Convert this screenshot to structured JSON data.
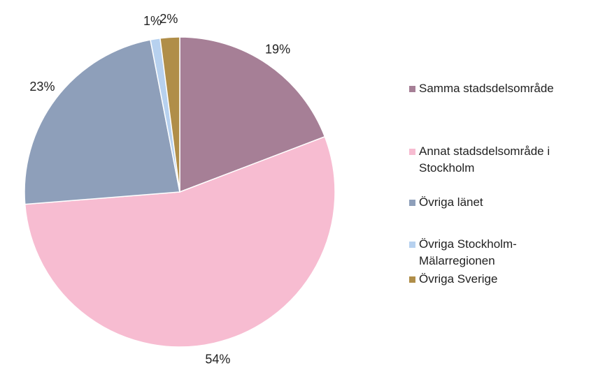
{
  "chart_data": {
    "type": "pie",
    "categories": [
      "Samma stadsdelsområde",
      "Annat stadsdelsområde i Stockholm",
      "Övriga länet",
      "Övriga Stockholm-Mälarregionen",
      "Övriga Sverige"
    ],
    "values": [
      19,
      54,
      23,
      1,
      2
    ],
    "value_labels": [
      "19%",
      "54%",
      "23%",
      "1%",
      "2%"
    ],
    "colors": [
      "#a67f96",
      "#f7bcd1",
      "#8e9fba",
      "#b7d1ef",
      "#b08e49"
    ],
    "legend": "right"
  }
}
